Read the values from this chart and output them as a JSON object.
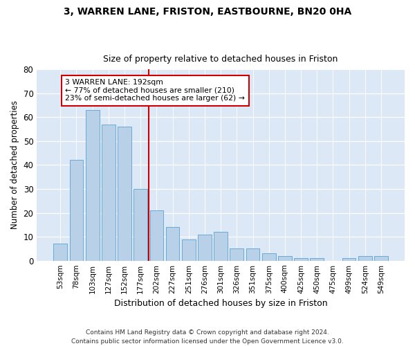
{
  "title1": "3, WARREN LANE, FRISTON, EASTBOURNE, BN20 0HA",
  "title2": "Size of property relative to detached houses in Friston",
  "xlabel": "Distribution of detached houses by size in Friston",
  "ylabel": "Number of detached properties",
  "bar_labels": [
    "53sqm",
    "78sqm",
    "103sqm",
    "127sqm",
    "152sqm",
    "177sqm",
    "202sqm",
    "227sqm",
    "251sqm",
    "276sqm",
    "301sqm",
    "326sqm",
    "351sqm",
    "375sqm",
    "400sqm",
    "425sqm",
    "450sqm",
    "475sqm",
    "499sqm",
    "524sqm",
    "549sqm"
  ],
  "values": [
    7,
    42,
    63,
    57,
    56,
    30,
    21,
    14,
    9,
    11,
    12,
    5,
    5,
    3,
    2,
    1,
    1,
    0,
    1,
    2,
    2
  ],
  "bar_color": "#b8d0e8",
  "bar_edge_color": "#6aaad4",
  "vline_color": "#cc0000",
  "annotation_text": "3 WARREN LANE: 192sqm\n← 77% of detached houses are smaller (210)\n23% of semi-detached houses are larger (62) →",
  "annotation_box_color": "#cc0000",
  "plot_bg_color": "#dce8f5",
  "fig_bg_color": "#ffffff",
  "ylim": [
    0,
    80
  ],
  "yticks": [
    0,
    10,
    20,
    30,
    40,
    50,
    60,
    70,
    80
  ],
  "footer": "Contains HM Land Registry data © Crown copyright and database right 2024.\nContains public sector information licensed under the Open Government Licence v3.0."
}
